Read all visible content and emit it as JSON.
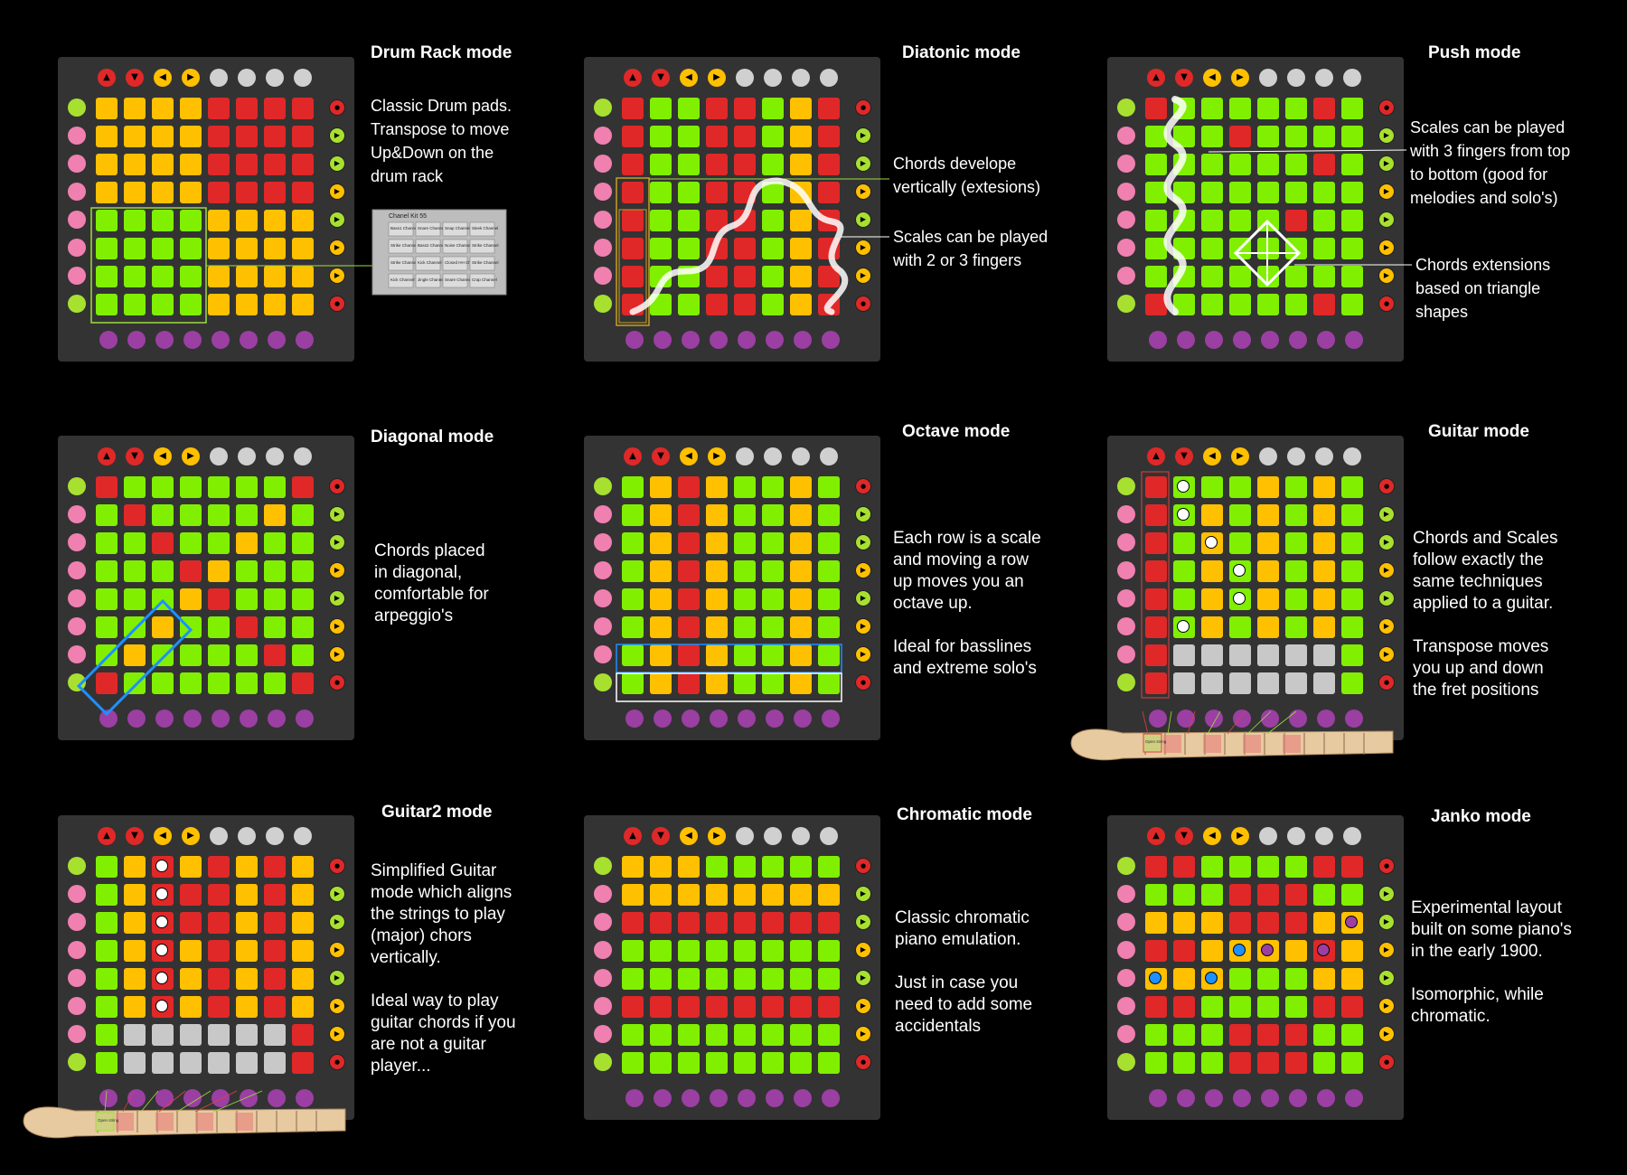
{
  "colors": {
    "red": "#e02828",
    "yellow": "#ffc000",
    "green": "#80f000",
    "grey": "#c8c8c8",
    "lime": "#a8e030",
    "pink": "#f080b0",
    "purple": "#9b3fa3",
    "device": "#333333"
  },
  "panels": [
    {
      "id": "drum-rack",
      "title": "Drum Rack mode",
      "lines": [
        "Classic Drum pads.",
        "Transpose to move",
        "Up&Down on the",
        "drum rack"
      ],
      "grid": [
        "YYYYRRRR",
        "YYYYRRRR",
        "YYYYRRRR",
        "YYYYRRRR",
        "GGGGYYYY",
        "GGGGYYYY",
        "GGGGYYYY",
        "GGGGYYYY"
      ],
      "thumbnail_title": "Chanel Kit 55",
      "thumbnail_cells": [
        "Bass1 Channel",
        "Snare Channel",
        "Snap Channel",
        "Sleek Channel",
        "Strike Channel",
        "Bass2 Channel",
        "Noise Channel",
        "Strike Channel",
        "Strike Channel",
        "Kick Channel",
        "Closed HH Channel",
        "Strike Channel",
        "Kick Channel",
        "Jingle Channel",
        "Snare Channel",
        "Crap Channel"
      ]
    },
    {
      "id": "diatonic",
      "title": "Diatonic mode",
      "callouts": [
        "Chords develope\nvertically (extesions)",
        "Scales can be played\nwith 2 or 3 fingers"
      ],
      "grid": [
        "RGGRRGYR",
        "RGGRRGYR",
        "RGGRRGYR",
        "RGGRRGYR",
        "RGGRRGYR",
        "RGGRRGYR",
        "RGGRRGYR",
        "RGGRRGYR"
      ]
    },
    {
      "id": "push",
      "title": "Push mode",
      "callouts": [
        "Scales can be played\nwith 3 fingers from top\nto bottom (good for\nmelodies and solo's)",
        "Chords extensions\nbased on triangle\nshapes"
      ],
      "grid": [
        "RGGGGGRG",
        "GGGRGGGG",
        "GGGGGGRG",
        "GGGGGGGG",
        "GGGGGRGG",
        "GGGGGGGG",
        "GGGGGGGG",
        "RGGGGGRG"
      ]
    },
    {
      "id": "diagonal",
      "title": "Diagonal mode",
      "lines": [
        "Chords placed",
        "in diagonal,",
        "comfortable for",
        "arpeggio's"
      ],
      "grid": [
        "RGGGGGGR",
        "GRGGGGYG",
        "GGRGGYGG",
        "GGGRYGGG",
        "GGGYRGGG",
        "GGYGGRGG",
        "GYGGGGRG",
        "RGGGGGGR"
      ]
    },
    {
      "id": "octave",
      "title": "Octave mode",
      "lines": [
        "Each row is a scale",
        "and moving a row",
        "up moves you an",
        "octave up.",
        "",
        "Ideal for basslines",
        "and extreme solo's"
      ],
      "grid": [
        "GYRYGGYG",
        "GYRYGGYG",
        "GYRYGGYG",
        "GYRYGGYG",
        "GYRYGGYG",
        "GYRYGGYG",
        "GYRYGGYG",
        "GYRYGGYG"
      ]
    },
    {
      "id": "guitar",
      "title": "Guitar mode",
      "lines": [
        "Chords and Scales",
        "follow exactly the",
        "same techniques",
        "applied to a guitar.",
        "",
        "Transpose moves",
        "you up and down",
        "the fret positions"
      ],
      "grid": [
        "RGGGYGYG",
        "RGYGYGYG",
        "RGYGYGYG",
        "RGYGYGYG",
        "RGYGYGYG",
        "RGYGYGYG",
        "RWWWWWWG",
        "RWWWWWWG"
      ],
      "dots": [
        [
          0,
          1
        ],
        [
          1,
          1
        ],
        [
          2,
          2
        ],
        [
          3,
          3
        ],
        [
          4,
          3
        ],
        [
          5,
          1
        ]
      ],
      "neck_label": "Open string"
    },
    {
      "id": "guitar2",
      "title": "Guitar2 mode",
      "lines": [
        "Simplified Guitar",
        "mode which aligns",
        "the strings to play",
        "(major) chors",
        "vertically.",
        "",
        "Ideal way to play",
        "guitar chords if you",
        "are not a guitar",
        "player..."
      ],
      "grid": [
        "GYRYRYRY",
        "GYRRRYRY",
        "GYRRRYRY",
        "GYRYRYRY",
        "GYRYRYRY",
        "GYRYRYRY",
        "GWWWWWWR",
        "GWWWWWWR"
      ],
      "dots": [
        [
          0,
          2
        ],
        [
          1,
          2
        ],
        [
          2,
          2
        ],
        [
          3,
          2
        ],
        [
          4,
          2
        ],
        [
          5,
          2
        ]
      ],
      "neck_label": "Open string"
    },
    {
      "id": "chromatic",
      "title": "Chromatic mode",
      "lines": [
        "Classic chromatic",
        "piano emulation.",
        "",
        "Just in case you",
        "need to add some",
        "accidentals"
      ],
      "grid": [
        "YYYGGGGG",
        "YYYYYYYY",
        "RRRRRRRR",
        "GGGGGGGG",
        "GGGGGGGG",
        "RRRRRRRR",
        "GGGGGGGG",
        "GGGGGGGG"
      ]
    },
    {
      "id": "janko",
      "title": "Janko mode",
      "lines": [
        "Experimental layout",
        "built on some piano's",
        "in the early 1900.",
        "",
        "Isomorphic, while",
        "chromatic."
      ],
      "grid": [
        "RRGGGGRR",
        "GGGRRRGG",
        "YYYRRRYY",
        "RRYYYYRY",
        "YYYGGGYY",
        "RRGGGGRR",
        "GGGRRRGG",
        "GGGRRRGG"
      ],
      "bluedots": [
        [
          3,
          3
        ],
        [
          4,
          0
        ],
        [
          4,
          2
        ]
      ],
      "purpledots": [
        [
          2,
          7
        ],
        [
          3,
          4
        ],
        [
          3,
          6
        ]
      ]
    }
  ]
}
